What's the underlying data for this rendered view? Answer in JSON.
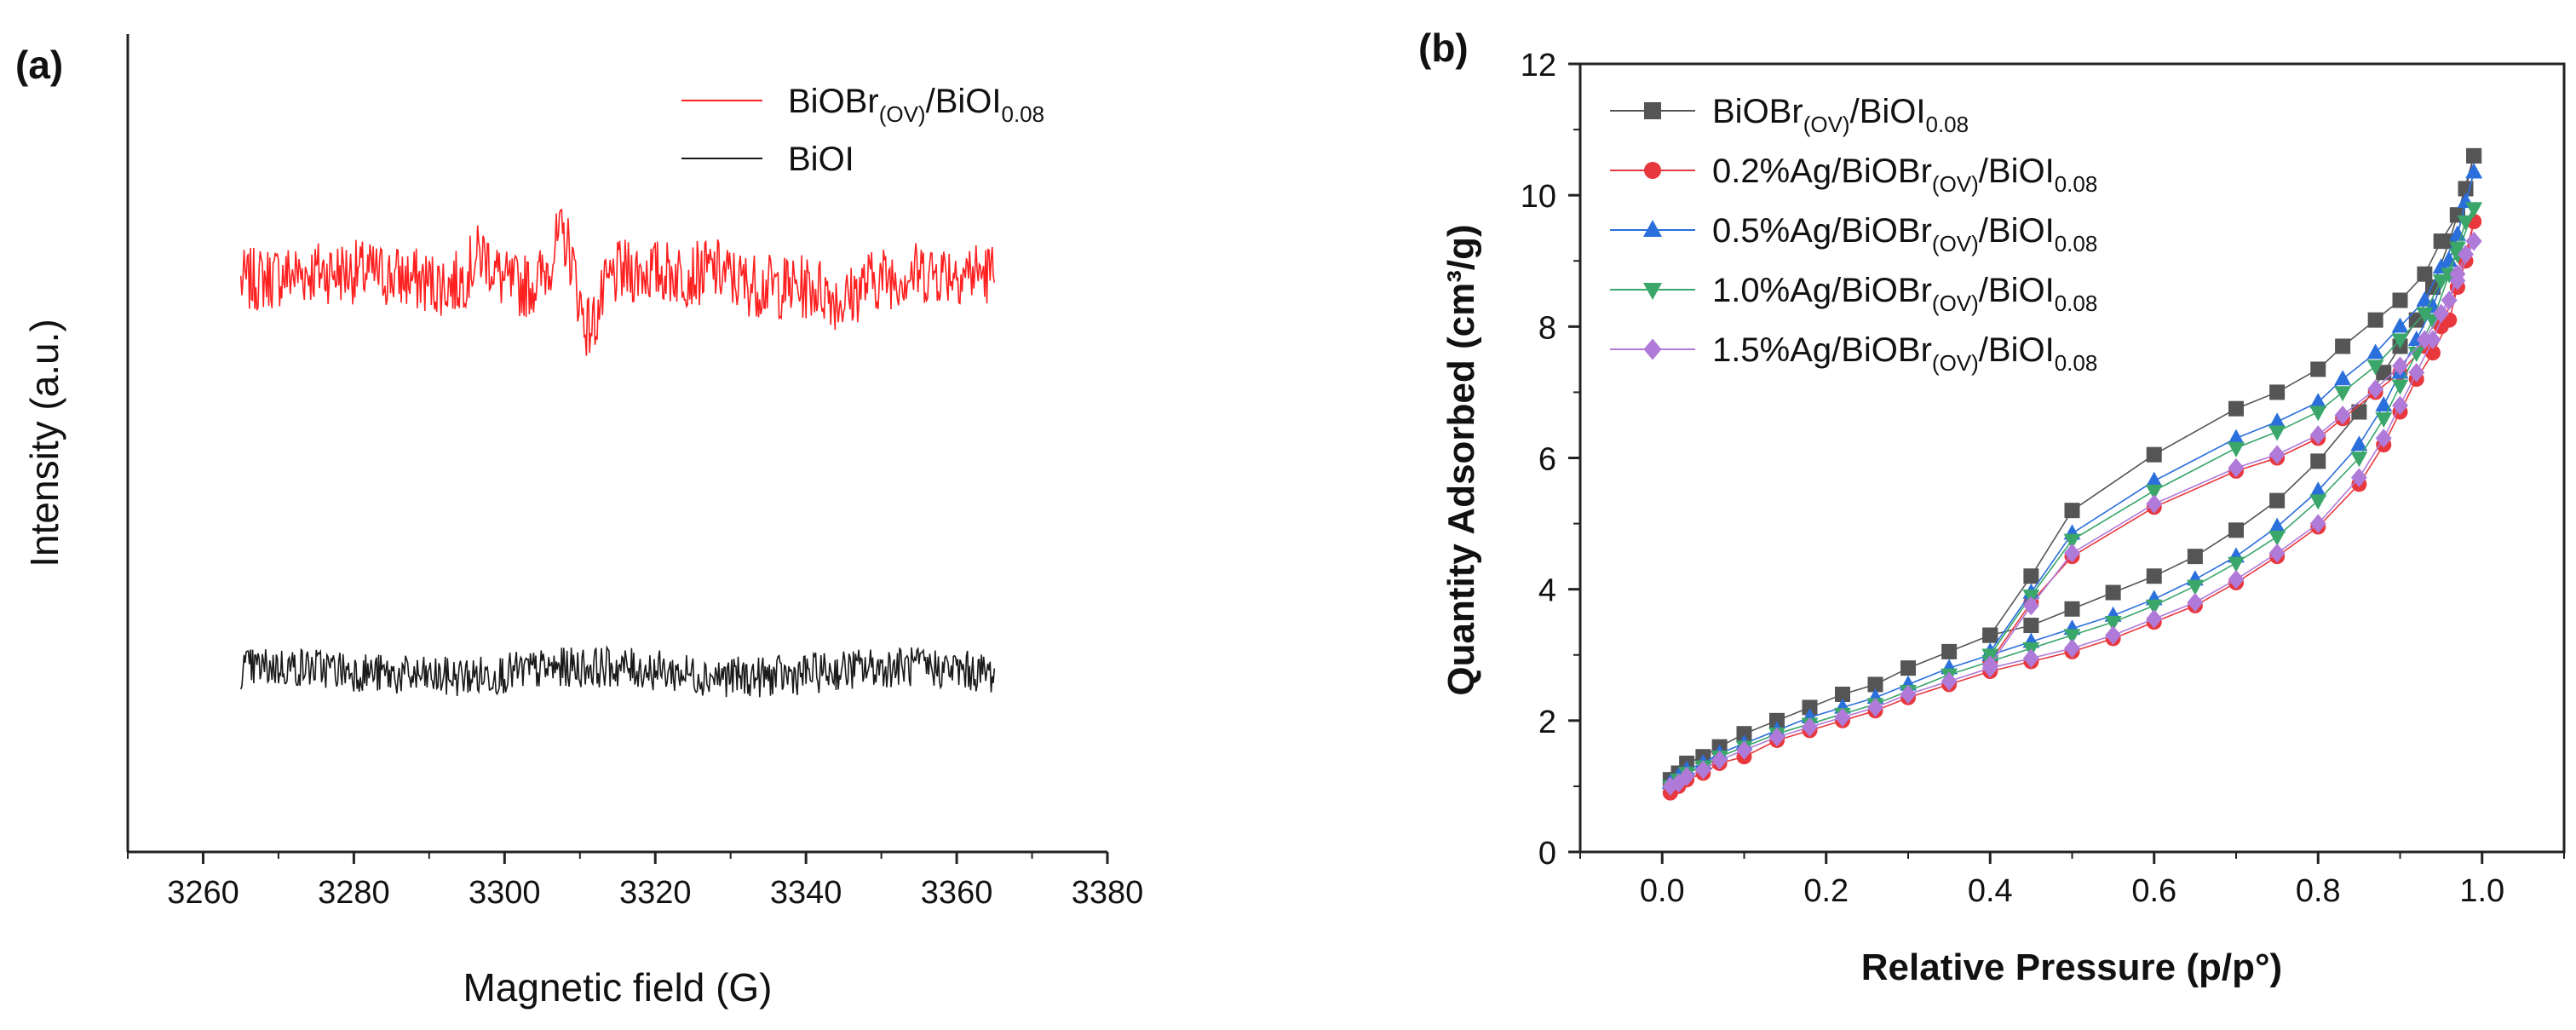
{
  "panel_a": {
    "label": "(a)",
    "chart_data": {
      "type": "line",
      "xlabel": "Magnetic field (G)",
      "ylabel": "Intensity (a.u.)",
      "xlim": [
        3250,
        3380
      ],
      "ylim": [
        0,
        1
      ],
      "x_ticks": [
        3260,
        3280,
        3300,
        3320,
        3340,
        3360,
        3380
      ],
      "y_ticks_shown": false,
      "series": [
        {
          "name": "BiOBr(OV)/BiOI0.08",
          "color": "#ff2020",
          "baseline": 0.7,
          "noise_amplitude": 0.04,
          "x_range": [
            3265,
            3365
          ],
          "features": [
            {
              "x": 3297,
              "value": 0.74
            },
            {
              "x": 3308,
              "value": 0.76
            },
            {
              "x": 3311,
              "value": 0.63
            },
            {
              "x": 3328,
              "value": 0.71
            },
            {
              "x": 3345,
              "value": 0.68
            }
          ]
        },
        {
          "name": "BiOI",
          "color": "#1a1a1a",
          "baseline": 0.22,
          "noise_amplitude": 0.025,
          "x_range": [
            3265,
            3365
          ],
          "features": []
        }
      ],
      "legend": [
        {
          "base": "BiOBr",
          "sub1": "(OV)",
          "mid": "/BiOI",
          "sub2": "0.08",
          "color": "#ff2020"
        },
        {
          "base": "BiOI",
          "sub1": "",
          "mid": "",
          "sub2": "",
          "color": "#1a1a1a"
        }
      ],
      "legend_position": "top-right"
    }
  },
  "panel_b": {
    "label": "(b)",
    "chart_data": {
      "type": "line",
      "xlabel": "Relative Pressure (p/p°)",
      "ylabel": "Quantity Adsorbed (cm³/g)",
      "xlim": [
        -0.1,
        1.1
      ],
      "ylim": [
        0,
        12
      ],
      "x_ticks": [
        "0.0",
        "0.2",
        "0.4",
        "0.6",
        "0.8",
        "1.0"
      ],
      "y_ticks": [
        "0",
        "2",
        "4",
        "6",
        "8",
        "10",
        "12"
      ],
      "legend_position": "top-left",
      "series": [
        {
          "name": "BiOBr(OV)/BiOI0.08",
          "label": {
            "pre": "",
            "base": "BiOBr",
            "sub1": "(OV)",
            "mid": "/BiOI",
            "sub2": "0.08"
          },
          "color": "#555555",
          "marker": "square",
          "adsorption": [
            [
              0.01,
              1.1
            ],
            [
              0.02,
              1.2
            ],
            [
              0.03,
              1.35
            ],
            [
              0.05,
              1.45
            ],
            [
              0.07,
              1.6
            ],
            [
              0.1,
              1.8
            ],
            [
              0.14,
              2.0
            ],
            [
              0.18,
              2.2
            ],
            [
              0.22,
              2.4
            ],
            [
              0.26,
              2.55
            ],
            [
              0.3,
              2.8
            ],
            [
              0.35,
              3.05
            ],
            [
              0.4,
              3.3
            ],
            [
              0.45,
              3.45
            ],
            [
              0.5,
              3.7
            ],
            [
              0.55,
              3.95
            ],
            [
              0.6,
              4.2
            ],
            [
              0.65,
              4.5
            ],
            [
              0.7,
              4.9
            ],
            [
              0.75,
              5.35
            ],
            [
              0.8,
              5.95
            ],
            [
              0.85,
              6.7
            ],
            [
              0.88,
              7.3
            ],
            [
              0.9,
              7.7
            ],
            [
              0.92,
              8.1
            ],
            [
              0.94,
              8.6
            ],
            [
              0.96,
              9.3
            ],
            [
              0.97,
              9.7
            ],
            [
              0.98,
              10.1
            ],
            [
              0.99,
              10.6
            ]
          ],
          "desorption": [
            [
              0.99,
              10.6
            ],
            [
              0.97,
              9.7
            ],
            [
              0.95,
              9.3
            ],
            [
              0.93,
              8.8
            ],
            [
              0.9,
              8.4
            ],
            [
              0.87,
              8.1
            ],
            [
              0.83,
              7.7
            ],
            [
              0.8,
              7.35
            ],
            [
              0.75,
              7.0
            ],
            [
              0.7,
              6.75
            ],
            [
              0.6,
              6.05
            ],
            [
              0.5,
              5.2
            ],
            [
              0.45,
              4.2
            ],
            [
              0.4,
              3.3
            ]
          ]
        },
        {
          "name": "0.2%Ag/BiOBr(OV)/BiOI0.08",
          "label": {
            "pre": "0.2%Ag/",
            "base": "BiOBr",
            "sub1": "(OV)",
            "mid": "/BiOI",
            "sub2": "0.08"
          },
          "color": "#e8383d",
          "marker": "circle",
          "adsorption": [
            [
              0.01,
              0.9
            ],
            [
              0.02,
              1.0
            ],
            [
              0.03,
              1.1
            ],
            [
              0.05,
              1.2
            ],
            [
              0.07,
              1.35
            ],
            [
              0.1,
              1.45
            ],
            [
              0.14,
              1.7
            ],
            [
              0.18,
              1.85
            ],
            [
              0.22,
              2.0
            ],
            [
              0.26,
              2.15
            ],
            [
              0.3,
              2.35
            ],
            [
              0.35,
              2.55
            ],
            [
              0.4,
              2.75
            ],
            [
              0.45,
              2.9
            ],
            [
              0.5,
              3.05
            ],
            [
              0.55,
              3.25
            ],
            [
              0.6,
              3.5
            ],
            [
              0.65,
              3.75
            ],
            [
              0.7,
              4.1
            ],
            [
              0.75,
              4.5
            ],
            [
              0.8,
              4.95
            ],
            [
              0.85,
              5.6
            ],
            [
              0.88,
              6.2
            ],
            [
              0.9,
              6.7
            ],
            [
              0.92,
              7.2
            ],
            [
              0.94,
              7.6
            ],
            [
              0.96,
              8.1
            ],
            [
              0.97,
              8.6
            ],
            [
              0.98,
              9.0
            ],
            [
              0.99,
              9.6
            ]
          ],
          "desorption": [
            [
              0.99,
              9.6
            ],
            [
              0.97,
              8.6
            ],
            [
              0.95,
              8.0
            ],
            [
              0.93,
              7.7
            ],
            [
              0.9,
              7.3
            ],
            [
              0.87,
              7.0
            ],
            [
              0.83,
              6.6
            ],
            [
              0.8,
              6.3
            ],
            [
              0.75,
              6.0
            ],
            [
              0.7,
              5.8
            ],
            [
              0.6,
              5.25
            ],
            [
              0.5,
              4.5
            ],
            [
              0.45,
              3.8
            ],
            [
              0.4,
              2.9
            ]
          ]
        },
        {
          "name": "0.5%Ag/BiOBr(OV)/BiOI0.08",
          "label": {
            "pre": "0.5%Ag/",
            "base": "BiOBr",
            "sub1": "(OV)",
            "mid": "/BiOI",
            "sub2": "0.08"
          },
          "color": "#2a6fdb",
          "marker": "triangle-up",
          "adsorption": [
            [
              0.01,
              1.05
            ],
            [
              0.02,
              1.15
            ],
            [
              0.03,
              1.25
            ],
            [
              0.05,
              1.35
            ],
            [
              0.07,
              1.5
            ],
            [
              0.1,
              1.65
            ],
            [
              0.14,
              1.85
            ],
            [
              0.18,
              2.05
            ],
            [
              0.22,
              2.2
            ],
            [
              0.26,
              2.35
            ],
            [
              0.3,
              2.55
            ],
            [
              0.35,
              2.8
            ],
            [
              0.4,
              3.0
            ],
            [
              0.45,
              3.2
            ],
            [
              0.5,
              3.4
            ],
            [
              0.55,
              3.6
            ],
            [
              0.6,
              3.85
            ],
            [
              0.65,
              4.15
            ],
            [
              0.7,
              4.5
            ],
            [
              0.75,
              4.95
            ],
            [
              0.8,
              5.5
            ],
            [
              0.85,
              6.2
            ],
            [
              0.88,
              6.8
            ],
            [
              0.9,
              7.3
            ],
            [
              0.92,
              7.8
            ],
            [
              0.94,
              8.3
            ],
            [
              0.96,
              9.0
            ],
            [
              0.97,
              9.4
            ],
            [
              0.98,
              9.9
            ],
            [
              0.99,
              10.35
            ]
          ],
          "desorption": [
            [
              0.99,
              10.35
            ],
            [
              0.97,
              9.4
            ],
            [
              0.95,
              8.9
            ],
            [
              0.93,
              8.4
            ],
            [
              0.9,
              8.0
            ],
            [
              0.87,
              7.6
            ],
            [
              0.83,
              7.2
            ],
            [
              0.8,
              6.85
            ],
            [
              0.75,
              6.55
            ],
            [
              0.7,
              6.3
            ],
            [
              0.6,
              5.65
            ],
            [
              0.5,
              4.85
            ],
            [
              0.45,
              3.95
            ],
            [
              0.4,
              3.05
            ]
          ]
        },
        {
          "name": "1.0%Ag/BiOBr(OV)/BiOI0.08",
          "label": {
            "pre": "1.0%Ag/",
            "base": "BiOBr",
            "sub1": "(OV)",
            "mid": "/BiOI",
            "sub2": "0.08"
          },
          "color": "#3aa66a",
          "marker": "triangle-down",
          "adsorption": [
            [
              0.01,
              1.0
            ],
            [
              0.02,
              1.1
            ],
            [
              0.03,
              1.2
            ],
            [
              0.05,
              1.3
            ],
            [
              0.07,
              1.45
            ],
            [
              0.1,
              1.6
            ],
            [
              0.14,
              1.8
            ],
            [
              0.18,
              1.95
            ],
            [
              0.22,
              2.1
            ],
            [
              0.26,
              2.25
            ],
            [
              0.3,
              2.45
            ],
            [
              0.35,
              2.7
            ],
            [
              0.4,
              2.9
            ],
            [
              0.45,
              3.1
            ],
            [
              0.5,
              3.3
            ],
            [
              0.55,
              3.5
            ],
            [
              0.6,
              3.75
            ],
            [
              0.65,
              4.05
            ],
            [
              0.7,
              4.4
            ],
            [
              0.75,
              4.8
            ],
            [
              0.8,
              5.35
            ],
            [
              0.85,
              6.0
            ],
            [
              0.88,
              6.6
            ],
            [
              0.9,
              7.1
            ],
            [
              0.92,
              7.6
            ],
            [
              0.94,
              8.1
            ],
            [
              0.96,
              8.8
            ],
            [
              0.97,
              9.2
            ],
            [
              0.98,
              9.6
            ],
            [
              0.99,
              9.8
            ]
          ],
          "desorption": [
            [
              0.99,
              9.8
            ],
            [
              0.97,
              9.1
            ],
            [
              0.95,
              8.7
            ],
            [
              0.93,
              8.2
            ],
            [
              0.9,
              7.8
            ],
            [
              0.87,
              7.4
            ],
            [
              0.83,
              7.0
            ],
            [
              0.8,
              6.7
            ],
            [
              0.75,
              6.4
            ],
            [
              0.7,
              6.15
            ],
            [
              0.6,
              5.5
            ],
            [
              0.5,
              4.75
            ],
            [
              0.45,
              3.9
            ],
            [
              0.4,
              3.0
            ]
          ]
        },
        {
          "name": "1.5%Ag/BiOBr(OV)/BiOI0.08",
          "label": {
            "pre": "1.5%Ag/",
            "base": "BiOBr",
            "sub1": "(OV)",
            "mid": "/BiOI",
            "sub2": "0.08"
          },
          "color": "#b07ad8",
          "marker": "diamond",
          "adsorption": [
            [
              0.01,
              1.0
            ],
            [
              0.02,
              1.05
            ],
            [
              0.03,
              1.15
            ],
            [
              0.05,
              1.25
            ],
            [
              0.07,
              1.4
            ],
            [
              0.1,
              1.55
            ],
            [
              0.14,
              1.75
            ],
            [
              0.18,
              1.9
            ],
            [
              0.22,
              2.05
            ],
            [
              0.26,
              2.2
            ],
            [
              0.3,
              2.4
            ],
            [
              0.35,
              2.6
            ],
            [
              0.4,
              2.8
            ],
            [
              0.45,
              2.95
            ],
            [
              0.5,
              3.1
            ],
            [
              0.55,
              3.3
            ],
            [
              0.6,
              3.55
            ],
            [
              0.65,
              3.8
            ],
            [
              0.7,
              4.15
            ],
            [
              0.75,
              4.55
            ],
            [
              0.8,
              5.0
            ],
            [
              0.85,
              5.7
            ],
            [
              0.88,
              6.3
            ],
            [
              0.9,
              6.8
            ],
            [
              0.92,
              7.3
            ],
            [
              0.94,
              7.8
            ],
            [
              0.96,
              8.4
            ],
            [
              0.97,
              8.8
            ],
            [
              0.98,
              9.1
            ],
            [
              0.99,
              9.3
            ]
          ],
          "desorption": [
            [
              0.99,
              9.3
            ],
            [
              0.97,
              8.7
            ],
            [
              0.95,
              8.2
            ],
            [
              0.93,
              7.8
            ],
            [
              0.9,
              7.4
            ],
            [
              0.87,
              7.05
            ],
            [
              0.83,
              6.65
            ],
            [
              0.8,
              6.35
            ],
            [
              0.75,
              6.05
            ],
            [
              0.7,
              5.85
            ],
            [
              0.6,
              5.3
            ],
            [
              0.5,
              4.55
            ],
            [
              0.45,
              3.75
            ],
            [
              0.4,
              2.85
            ]
          ]
        }
      ]
    }
  }
}
